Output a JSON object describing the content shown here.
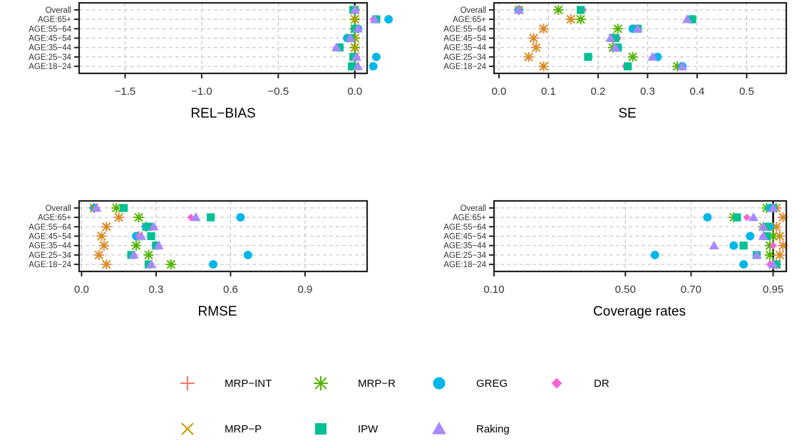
{
  "methods": [
    {
      "key": "MRP-INT",
      "label": "MRP−INT",
      "color": "#F8766D",
      "shape": "plus"
    },
    {
      "key": "MRP-R",
      "label": "MRP−R",
      "color": "#53B400",
      "shape": "asterisk"
    },
    {
      "key": "GREG",
      "label": "GREG",
      "color": "#00B6EB",
      "shape": "circle"
    },
    {
      "key": "DR",
      "label": "DR",
      "color": "#FB61D7",
      "shape": "diamond"
    },
    {
      "key": "MRP-P",
      "label": "MRP−P",
      "color": "#C49A00",
      "shape": "cross"
    },
    {
      "key": "IPW",
      "label": "IPW",
      "color": "#00C094",
      "shape": "square"
    },
    {
      "key": "Raking",
      "label": "Raking",
      "color": "#A58AFF",
      "shape": "triangle"
    }
  ],
  "chart_data": [
    {
      "type": "scatter",
      "xlabel": "REL−BIAS",
      "categories": [
        "Overall",
        "AGE:65+",
        "AGE:55−64",
        "AGE:45−54",
        "AGE:35−44",
        "AGE:25−34",
        "AGE:18−24"
      ],
      "xlim": [
        -1.8,
        0.08
      ],
      "xticks": [
        -1.5,
        -1.0,
        -0.5,
        0.0
      ],
      "xtick_labels": [
        "−1.5",
        "−1.0",
        "−0.5",
        "0.0"
      ],
      "vline": 0,
      "series": [
        {
          "name": "MRP−INT",
          "values": [
            0.0,
            0.0,
            0.0,
            0.0,
            0.0,
            0.0,
            0.0
          ]
        },
        {
          "name": "MRP−R",
          "values": [
            0.0,
            0.0,
            0.0,
            0.0,
            0.0,
            0.0,
            0.0
          ]
        },
        {
          "name": "GREG",
          "values": [
            0.0,
            0.22,
            0.02,
            -0.05,
            -0.1,
            0.14,
            0.12
          ]
        },
        {
          "name": "DR",
          "values": [
            0.0,
            0.12,
            0.02,
            -0.03,
            -0.12,
            0.01,
            0.01
          ]
        },
        {
          "name": "MRP−P",
          "values": [
            0.0,
            0.0,
            0.0,
            0.0,
            0.0,
            0.0,
            0.0
          ]
        },
        {
          "name": "IPW",
          "values": [
            -0.01,
            0.14,
            0.0,
            -0.03,
            -0.1,
            -0.01,
            -0.02
          ]
        },
        {
          "name": "Raking",
          "values": [
            0.0,
            0.13,
            0.02,
            -0.03,
            -0.12,
            0.01,
            0.02
          ]
        }
      ]
    },
    {
      "type": "scatter",
      "xlabel": "SE",
      "categories": [
        "Overall",
        "AGE:65+",
        "AGE:55−64",
        "AGE:45−54",
        "AGE:35−44",
        "AGE:25−34",
        "AGE:18−24"
      ],
      "xlim": [
        -0.01,
        0.58
      ],
      "xticks": [
        0.0,
        0.1,
        0.2,
        0.3,
        0.4,
        0.5
      ],
      "xtick_labels": [
        "0.0",
        "0.1",
        "0.2",
        "0.3",
        "0.4",
        "0.5"
      ],
      "series": [
        {
          "name": "MRP−INT",
          "values": [
            0.04,
            0.145,
            0.09,
            0.07,
            0.075,
            0.06,
            0.09
          ]
        },
        {
          "name": "MRP−R",
          "values": [
            0.12,
            0.165,
            0.24,
            0.23,
            0.23,
            0.27,
            0.36
          ]
        },
        {
          "name": "GREG",
          "values": [
            0.04,
            0.39,
            0.27,
            0.23,
            0.24,
            0.32,
            0.37
          ]
        },
        {
          "name": "DR",
          "values": [
            0.17,
            0.39,
            0.28,
            0.24,
            0.235,
            0.18,
            0.255
          ]
        },
        {
          "name": "MRP−P",
          "values": [
            0.04,
            0.145,
            0.09,
            0.07,
            0.075,
            0.06,
            0.09
          ]
        },
        {
          "name": "IPW",
          "values": [
            0.165,
            0.39,
            0.28,
            0.235,
            0.24,
            0.18,
            0.26
          ]
        },
        {
          "name": "Raking",
          "values": [
            0.04,
            0.38,
            0.28,
            0.225,
            0.235,
            0.31,
            0.37
          ]
        }
      ]
    },
    {
      "type": "scatter",
      "xlabel": "RMSE",
      "categories": [
        "Overall",
        "AGE:65+",
        "AGE:55−64",
        "AGE:45−54",
        "AGE:35−44",
        "AGE:25−34",
        "AGE:18−24"
      ],
      "xlim": [
        -0.01,
        1.15
      ],
      "xticks": [
        0.0,
        0.3,
        0.6,
        0.9
      ],
      "xtick_labels": [
        "0.0",
        "0.3",
        "0.6",
        "0.9"
      ],
      "series": [
        {
          "name": "MRP−INT",
          "values": [
            0.05,
            0.15,
            0.1,
            0.08,
            0.09,
            0.07,
            0.1
          ]
        },
        {
          "name": "MRP−R",
          "values": [
            0.14,
            0.23,
            0.26,
            0.23,
            0.22,
            0.27,
            0.36
          ]
        },
        {
          "name": "GREG",
          "values": [
            0.05,
            0.64,
            0.26,
            0.22,
            0.3,
            0.67,
            0.53
          ]
        },
        {
          "name": "DR",
          "values": [
            0.06,
            0.44,
            0.29,
            0.23,
            0.31,
            0.21,
            0.28
          ]
        },
        {
          "name": "MRP−P",
          "values": [
            0.05,
            0.15,
            0.1,
            0.08,
            0.09,
            0.07,
            0.1
          ]
        },
        {
          "name": "IPW",
          "values": [
            0.17,
            0.52,
            0.27,
            0.28,
            0.3,
            0.2,
            0.27
          ]
        },
        {
          "name": "Raking",
          "values": [
            0.06,
            0.46,
            0.29,
            0.24,
            0.31,
            0.21,
            0.28
          ]
        }
      ]
    },
    {
      "type": "scatter",
      "xlabel": "Coverage rates",
      "categories": [
        "Overall",
        "AGE:65+",
        "AGE:55−64",
        "AGE:45−54",
        "AGE:35−44",
        "AGE:25−34",
        "AGE:18−24"
      ],
      "xlim": [
        0.1,
        0.99
      ],
      "xticks": [
        0.1,
        0.5,
        0.7,
        0.95
      ],
      "xtick_labels": [
        "0.10",
        "0.50",
        "0.70",
        "0.95"
      ],
      "vline": 0.95,
      "series": [
        {
          "name": "MRP−INT",
          "values": [
            0.96,
            0.98,
            0.96,
            0.97,
            0.98,
            0.97,
            0.96
          ]
        },
        {
          "name": "MRP−R",
          "values": [
            0.93,
            0.83,
            0.92,
            0.95,
            0.94,
            0.94,
            0.95
          ]
        },
        {
          "name": "GREG",
          "values": [
            0.94,
            0.75,
            0.94,
            0.88,
            0.83,
            0.59,
            0.86
          ]
        },
        {
          "name": "DR",
          "values": [
            0.95,
            0.87,
            0.92,
            0.92,
            0.95,
            0.9,
            0.94
          ]
        },
        {
          "name": "MRP−P",
          "values": [
            0.96,
            0.98,
            0.96,
            0.97,
            0.98,
            0.97,
            0.96
          ]
        },
        {
          "name": "IPW",
          "values": [
            0.95,
            0.84,
            0.93,
            0.93,
            0.86,
            0.9,
            0.96
          ]
        },
        {
          "name": "Raking",
          "values": [
            0.95,
            0.89,
            0.92,
            0.92,
            0.77,
            0.9,
            0.95
          ]
        }
      ]
    }
  ]
}
